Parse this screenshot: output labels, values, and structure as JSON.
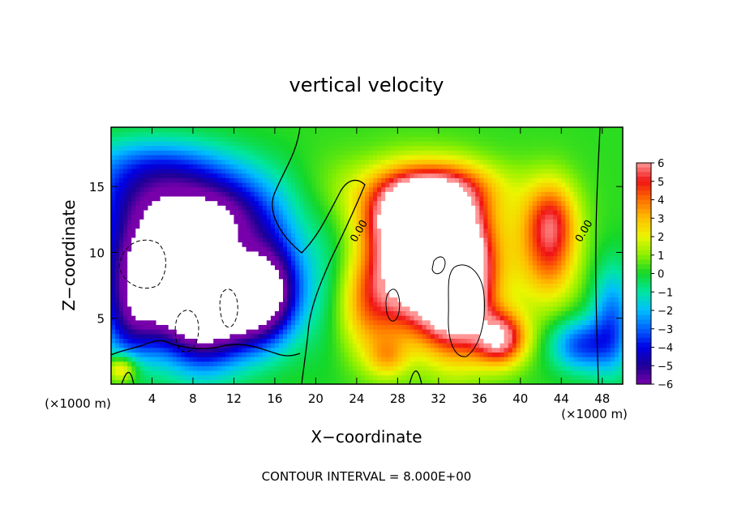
{
  "chart_data": {
    "type": "heatmap",
    "title": "vertical velocity",
    "xlabel": "X−coordinate",
    "ylabel": "Z−coordinate",
    "x_unit_left": "(×1000 m)",
    "x_unit_right": "(×1000 m)",
    "footer": "CONTOUR INTERVAL = 8.000E+00",
    "xlim": [
      0,
      50
    ],
    "ylim": [
      0,
      19.5
    ],
    "x_ticks": [
      4,
      8,
      12,
      16,
      20,
      24,
      28,
      32,
      36,
      40,
      44,
      48
    ],
    "y_ticks": [
      5,
      10,
      15
    ],
    "colorbar": {
      "min": -6,
      "max": 6,
      "tick_values": [
        6,
        5,
        4,
        3,
        2,
        1,
        0,
        -1,
        -2,
        -3,
        -4,
        -5,
        -6
      ],
      "tick_labels": [
        "6",
        "5",
        "4",
        "3",
        "2",
        "1",
        "0",
        "−1",
        "−2",
        "−3",
        "−4",
        "−5",
        "−6"
      ]
    },
    "contour_labels": [
      {
        "text": "0.00",
        "x": 24.5,
        "y": 11.5
      },
      {
        "text": "0.00",
        "x": 46.5,
        "y": 11.5
      }
    ],
    "features": [
      {
        "x": 4,
        "z": 9,
        "w": -8,
        "rx": 5,
        "rz": 4.5
      },
      {
        "x": 9,
        "z": 5.5,
        "w": -8,
        "rx": 4,
        "rz": 4
      },
      {
        "x": 14,
        "z": 6.5,
        "w": -7,
        "rx": 3.5,
        "rz": 3.5
      },
      {
        "x": 6,
        "z": 14.5,
        "w": -4,
        "rx": 9,
        "rz": 3
      },
      {
        "x": 11,
        "z": 12,
        "w": -4.5,
        "rx": 5,
        "rz": 3
      },
      {
        "x": 16,
        "z": 8,
        "w": -3,
        "rx": 3,
        "rz": 4
      },
      {
        "x": 2,
        "z": 4.5,
        "w": -3,
        "rx": 3,
        "rz": 3
      },
      {
        "x": 4,
        "z": 17,
        "w": -1.5,
        "rx": 7,
        "rz": 2
      },
      {
        "x": 46,
        "z": 3,
        "w": -3.5,
        "rx": 3,
        "rz": 2
      },
      {
        "x": 49,
        "z": 5,
        "w": -3,
        "rx": 2,
        "rz": 4
      },
      {
        "x": 21,
        "z": 8,
        "w": -1,
        "rx": 3,
        "rz": 6
      },
      {
        "x": 25,
        "z": 6,
        "w": 3,
        "rx": 3,
        "rz": 4
      },
      {
        "x": 28,
        "z": 10,
        "w": 4,
        "rx": 3.5,
        "rz": 5
      },
      {
        "x": 31.5,
        "z": 9,
        "w": 8,
        "rx": 4,
        "rz": 5
      },
      {
        "x": 34,
        "z": 8,
        "w": 8,
        "rx": 3,
        "rz": 5
      },
      {
        "x": 30,
        "z": 13,
        "w": 5,
        "rx": 5,
        "rz": 2.5
      },
      {
        "x": 32,
        "z": 15,
        "w": 3,
        "rx": 6,
        "rz": 2
      },
      {
        "x": 38,
        "z": 3.5,
        "w": 6,
        "rx": 2.5,
        "rz": 2
      },
      {
        "x": 43,
        "z": 12.5,
        "w": 4,
        "rx": 2.5,
        "rz": 3
      },
      {
        "x": 43,
        "z": 9,
        "w": 2,
        "rx": 2.5,
        "rz": 3
      },
      {
        "x": 40,
        "z": 10,
        "w": 1.5,
        "rx": 5,
        "rz": 5
      },
      {
        "x": 22,
        "z": 15,
        "w": 0.8,
        "rx": 4,
        "rz": 3
      },
      {
        "x": 1,
        "z": 1.2,
        "w": 3,
        "rx": 1.5,
        "rz": 1
      },
      {
        "x": 27,
        "z": 2,
        "w": 2,
        "rx": 2,
        "rz": 1.5
      }
    ]
  }
}
